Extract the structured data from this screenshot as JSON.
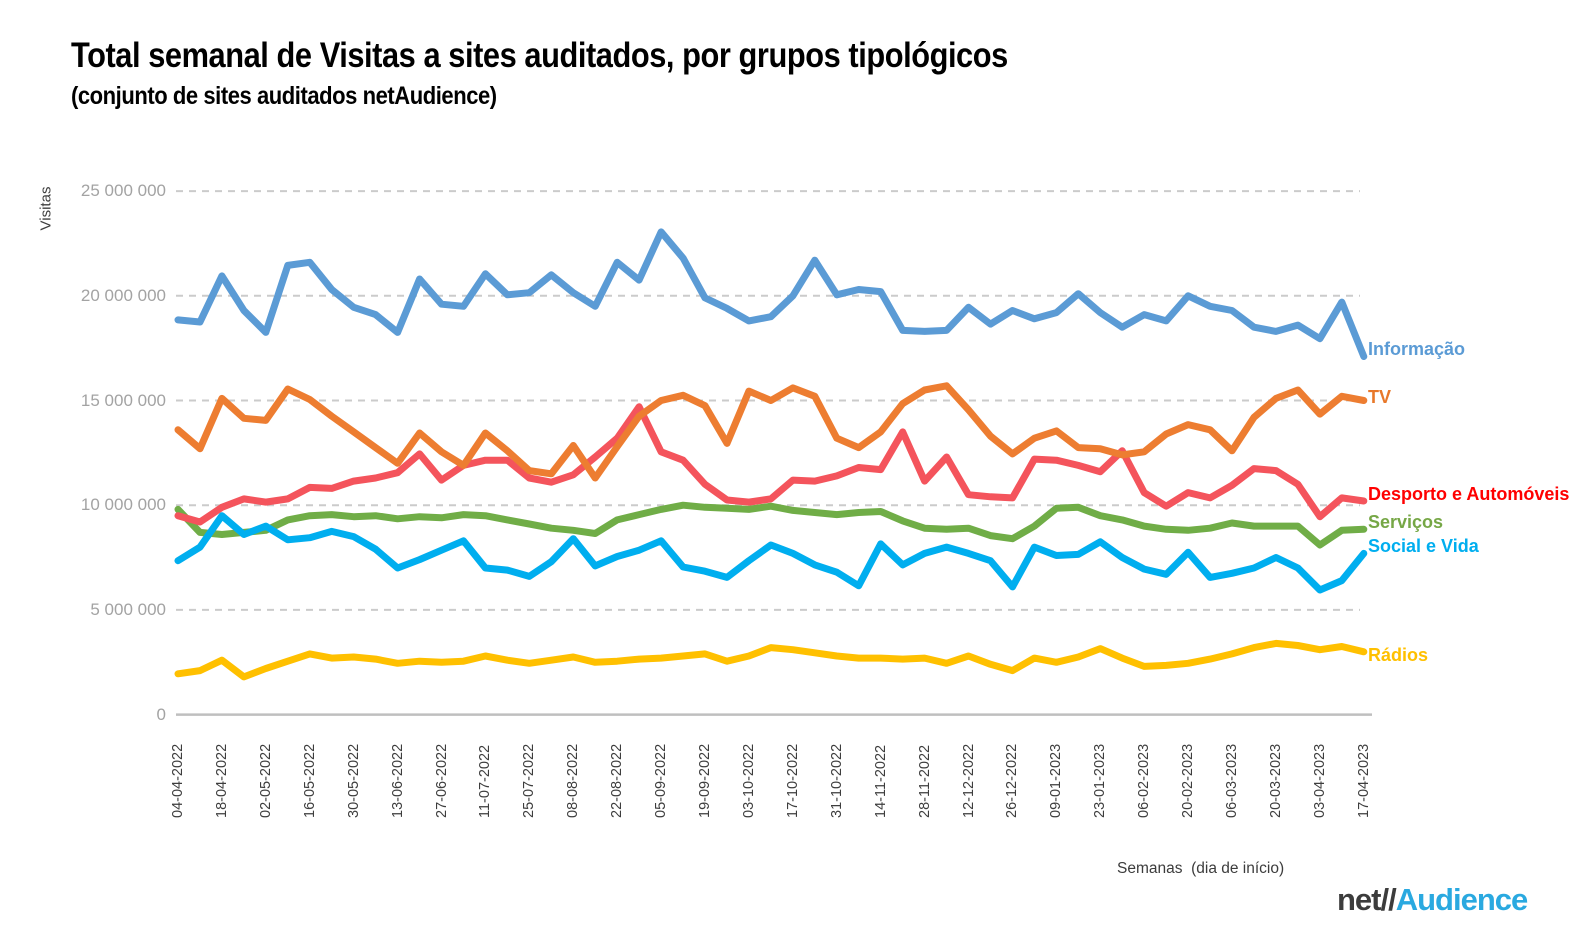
{
  "header": {
    "title": "Total semanal de Visitas a sites auditados, por grupos tipológicos",
    "subtitle": "(conjunto de sites auditados netAudience)"
  },
  "logo": {
    "net": "net",
    "slashes": "//",
    "audience": "Audience",
    "net_color": "#3c3c3c",
    "audience_color": "#2aa9e0"
  },
  "chart_data": {
    "type": "line",
    "title": "Total semanal de Visitas a sites auditados, por grupos tipológicos",
    "subtitle": "(conjunto de sites auditados netAudience)",
    "ylabel": "Visitas",
    "xlabel": "Semanas  (dia de início)",
    "ylim": [
      0,
      25000000
    ],
    "grid": "dashed-horizontal",
    "legend_position": "right-of-line-ends",
    "values_unit": "millions",
    "y_ticks": [
      {
        "value": 0,
        "label": "0"
      },
      {
        "value": 5000000,
        "label": "5 000 000"
      },
      {
        "value": 10000000,
        "label": "10 000 000"
      },
      {
        "value": 15000000,
        "label": "15 000 000"
      },
      {
        "value": 20000000,
        "label": "20 000 000"
      },
      {
        "value": 25000000,
        "label": "25 000 000"
      }
    ],
    "x": [
      "04-04-2022",
      "11-04-2022",
      "18-04-2022",
      "25-04-2022",
      "02-05-2022",
      "09-05-2022",
      "16-05-2022",
      "23-05-2022",
      "30-05-2022",
      "06-06-2022",
      "13-06-2022",
      "20-06-2022",
      "27-06-2022",
      "04-07-2022",
      "11-07-2022",
      "18-07-2022",
      "25-07-2022",
      "01-08-2022",
      "08-08-2022",
      "15-08-2022",
      "22-08-2022",
      "29-08-2022",
      "05-09-2022",
      "12-09-2022",
      "19-09-2022",
      "26-09-2022",
      "03-10-2022",
      "10-10-2022",
      "17-10-2022",
      "24-10-2022",
      "31-10-2022",
      "07-11-2022",
      "14-11-2022",
      "21-11-2022",
      "28-11-2022",
      "05-12-2022",
      "12-12-2022",
      "19-12-2022",
      "26-12-2022",
      "02-01-2023",
      "09-01-2023",
      "16-01-2023",
      "23-01-2023",
      "30-01-2023",
      "06-02-2023",
      "13-02-2023",
      "20-02-2023",
      "27-02-2023",
      "06-03-2023",
      "13-03-2023",
      "20-03-2023",
      "27-03-2023",
      "03-04-2023",
      "10-04-2023",
      "17-04-2023"
    ],
    "x_tick_labels": [
      "04-04-2022",
      "18-04-2022",
      "02-05-2022",
      "16-05-2022",
      "30-05-2022",
      "13-06-2022",
      "27-06-2022",
      "11-07-2022",
      "25-07-2022",
      "08-08-2022",
      "22-08-2022",
      "05-09-2022",
      "19-09-2022",
      "03-10-2022",
      "17-10-2022",
      "31-10-2022",
      "14-11-2022",
      "28-11-2022",
      "12-12-2022",
      "26-12-2022",
      "09-01-2023",
      "23-01-2023",
      "06-02-2023",
      "20-02-2023",
      "06-03-2023",
      "20-03-2023",
      "03-04-2023",
      "17-04-2023"
    ],
    "series": [
      {
        "id": "informacao",
        "name": "Informação",
        "color": "#5b9bd5",
        "legend_color": "#5b9bd5",
        "values_in_millions": [
          18.85,
          18.75,
          20.95,
          19.3,
          18.25,
          21.45,
          21.6,
          20.3,
          19.45,
          19.1,
          18.25,
          20.8,
          19.6,
          19.5,
          21.05,
          20.05,
          20.15,
          21.0,
          20.15,
          19.5,
          21.6,
          20.75,
          23.05,
          21.8,
          19.9,
          19.4,
          18.8,
          19.0,
          20.0,
          21.7,
          20.05,
          20.3,
          20.2,
          18.35,
          18.3,
          18.35,
          19.45,
          18.65,
          19.3,
          18.9,
          19.2,
          20.1,
          19.2,
          18.5,
          19.1,
          18.8,
          20.0,
          19.5,
          19.3,
          18.5,
          18.3,
          18.6,
          17.95,
          19.7,
          17.1
        ]
      },
      {
        "id": "tv",
        "name": "TV",
        "color": "#ed7d31",
        "legend_color": "#e8782a",
        "values_in_millions": [
          13.6,
          12.7,
          15.1,
          14.15,
          14.05,
          15.55,
          15.05,
          14.25,
          13.5,
          12.75,
          12.0,
          13.45,
          12.55,
          11.9,
          13.45,
          12.6,
          11.65,
          11.5,
          12.85,
          11.3,
          12.8,
          14.25,
          15.0,
          15.25,
          14.75,
          12.95,
          15.45,
          15.0,
          15.6,
          15.2,
          13.2,
          12.75,
          13.5,
          14.85,
          15.5,
          15.7,
          14.55,
          13.3,
          12.45,
          13.2,
          13.55,
          12.75,
          12.7,
          12.4,
          12.55,
          13.4,
          13.85,
          13.6,
          12.6,
          14.2,
          15.1,
          15.5,
          14.35,
          15.2,
          15.0
        ]
      },
      {
        "id": "desporto_automoveis",
        "name": "Desporto e Automóveis",
        "color": "#f4545c",
        "legend_color": "#ff0000",
        "values_in_millions": [
          9.5,
          9.2,
          9.9,
          10.3,
          10.15,
          10.3,
          10.85,
          10.8,
          11.15,
          11.3,
          11.55,
          12.45,
          11.2,
          11.9,
          12.15,
          12.15,
          11.3,
          11.1,
          11.45,
          12.3,
          13.2,
          14.7,
          12.55,
          12.15,
          11.0,
          10.25,
          10.15,
          10.3,
          11.2,
          11.15,
          11.4,
          11.8,
          11.7,
          13.5,
          11.15,
          12.3,
          10.5,
          10.4,
          10.35,
          12.2,
          12.15,
          11.9,
          11.6,
          12.6,
          10.6,
          9.95,
          10.6,
          10.35,
          10.95,
          11.75,
          11.65,
          11.0,
          9.45,
          10.35,
          10.2
        ]
      },
      {
        "id": "servicos",
        "name": "Serviços",
        "color": "#70ad47",
        "legend_color": "#76a746",
        "values_in_millions": [
          9.8,
          8.7,
          8.6,
          8.7,
          8.8,
          9.3,
          9.5,
          9.55,
          9.45,
          9.5,
          9.35,
          9.45,
          9.4,
          9.55,
          9.5,
          9.3,
          9.1,
          8.9,
          8.8,
          8.65,
          9.3,
          9.55,
          9.8,
          10.0,
          9.9,
          9.85,
          9.8,
          9.95,
          9.75,
          9.65,
          9.55,
          9.65,
          9.7,
          9.25,
          8.9,
          8.85,
          8.9,
          8.55,
          8.4,
          9.0,
          9.85,
          9.9,
          9.5,
          9.3,
          9.0,
          8.85,
          8.8,
          8.9,
          9.15,
          9.0,
          9.0,
          9.0,
          8.1,
          8.8,
          8.85
        ]
      },
      {
        "id": "social_vida",
        "name": "Social e Vida",
        "color": "#00aeef",
        "legend_color": "#00aeef",
        "values_in_millions": [
          7.35,
          8.0,
          9.5,
          8.6,
          9.0,
          8.35,
          8.45,
          8.75,
          8.5,
          7.9,
          7.0,
          7.4,
          7.85,
          8.3,
          7.0,
          6.9,
          6.6,
          7.3,
          8.4,
          7.1,
          7.55,
          7.85,
          8.3,
          7.05,
          6.85,
          6.55,
          7.35,
          8.1,
          7.7,
          7.15,
          6.8,
          6.15,
          8.15,
          7.15,
          7.7,
          8.0,
          7.7,
          7.35,
          6.1,
          8.0,
          7.6,
          7.65,
          8.25,
          7.5,
          6.95,
          6.7,
          7.75,
          6.55,
          6.75,
          7.0,
          7.5,
          7.0,
          5.95,
          6.4,
          7.7
        ]
      },
      {
        "id": "radios",
        "name": "Rádios",
        "color": "#ffc000",
        "legend_color": "#ffc000",
        "values_in_millions": [
          1.95,
          2.1,
          2.6,
          1.8,
          2.2,
          2.55,
          2.9,
          2.7,
          2.75,
          2.65,
          2.45,
          2.55,
          2.5,
          2.55,
          2.8,
          2.6,
          2.45,
          2.6,
          2.75,
          2.5,
          2.55,
          2.65,
          2.7,
          2.8,
          2.9,
          2.55,
          2.8,
          3.2,
          3.1,
          2.95,
          2.8,
          2.7,
          2.7,
          2.65,
          2.7,
          2.45,
          2.8,
          2.4,
          2.1,
          2.7,
          2.5,
          2.75,
          3.15,
          2.7,
          2.3,
          2.35,
          2.45,
          2.65,
          2.9,
          3.2,
          3.4,
          3.3,
          3.1,
          3.25,
          3.0
        ]
      }
    ]
  }
}
